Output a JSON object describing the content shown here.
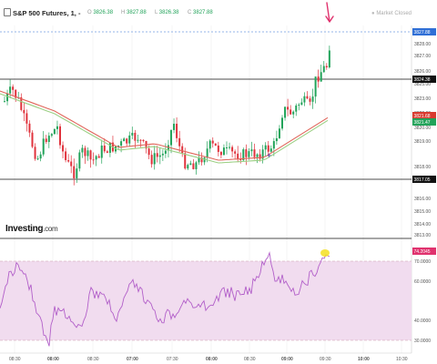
{
  "header": {
    "title": "S&P 500 Futures, 1, -",
    "ohlc": [
      {
        "k": "O",
        "v": "3826.38"
      },
      {
        "k": "H",
        "v": "3827.88"
      },
      {
        "k": "L",
        "v": "3826.38"
      },
      {
        "k": "C",
        "v": "3827.88"
      }
    ],
    "market_status": "Market Closed"
  },
  "brand": {
    "name": "Investing",
    "suffix": ".com"
  },
  "price_axis": {
    "ticks": [
      "3829.00",
      "3828.00",
      "3827.00",
      "3826.00",
      "3825.00",
      "3823.00",
      "3822.00",
      "3820.00",
      "3819.00",
      "3818.00",
      "3816.00",
      "3815.00",
      "3814.00",
      "3813.00"
    ],
    "badges": [
      {
        "label": "3827.88",
        "color": "#2f6fd6"
      },
      {
        "label": "3824.38",
        "color": "#111111"
      },
      {
        "label": "3821.68",
        "color": "#d93a2f"
      },
      {
        "label": "3821.47",
        "color": "#22a35a"
      },
      {
        "label": "3817.05",
        "color": "#111111"
      }
    ]
  },
  "rsi_axis": {
    "ticks": [
      "70.0000",
      "60.0000",
      "40.0000",
      "30.0000"
    ],
    "badge": {
      "label": "74.2045",
      "color": "#e0326e"
    }
  },
  "time_axis": {
    "ticks": [
      "08:30",
      "08:00",
      "08:30",
      "07:00",
      "07:30",
      "08:00",
      "08:30",
      "09:00",
      "09:30",
      "10:00",
      "10:30"
    ]
  },
  "colors": {
    "up": "#22a35a",
    "down": "#e0323c",
    "ema_fast": "#e0655a",
    "ema_slow": "#9ccf84",
    "rsi": "#b25fc9",
    "rsi_band": "#f1dcef",
    "annot": "#e0326e",
    "highlight": "#f5e021"
  }
}
